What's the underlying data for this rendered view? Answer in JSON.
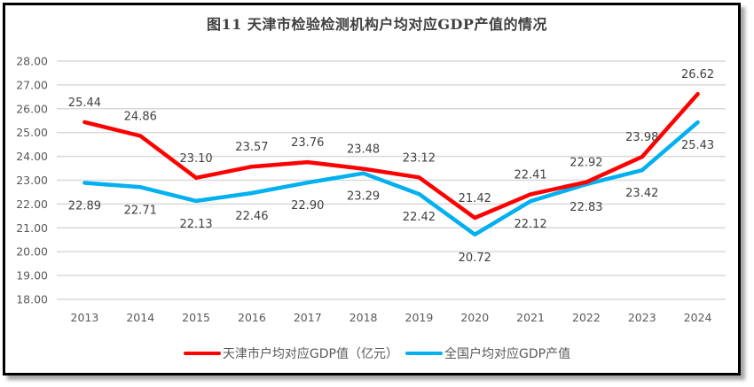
{
  "chart_data": {
    "type": "line",
    "title": "图11   天津市检验检测机构户均对应GDP产值的情况",
    "xlabel": "",
    "ylabel": "",
    "x": [
      "2013",
      "2014",
      "2015",
      "2016",
      "2017",
      "2018",
      "2019",
      "2020",
      "2021",
      "2022",
      "2023",
      "2024"
    ],
    "ylim": [
      18.0,
      28.0
    ],
    "yticks": [
      "18.00",
      "19.00",
      "20.00",
      "21.00",
      "22.00",
      "23.00",
      "24.00",
      "25.00",
      "26.00",
      "27.00",
      "28.00"
    ],
    "grid": true,
    "legend_position": "bottom",
    "series": [
      {
        "name": "天津市户均对应GDP值（亿元）",
        "color": "#FF0000",
        "values": [
          25.44,
          24.86,
          23.1,
          23.57,
          23.76,
          23.48,
          23.12,
          21.42,
          22.41,
          22.92,
          23.98,
          26.62
        ],
        "labels": [
          "25.44",
          "24.86",
          "23.10",
          "23.57",
          "23.76",
          "23.48",
          "23.12",
          "21.42",
          "22.41",
          "22.92",
          "23.98",
          "26.62"
        ],
        "label_position": "above"
      },
      {
        "name": "全国户均对应GDP产值",
        "color": "#00B0F0",
        "values": [
          22.89,
          22.71,
          22.13,
          22.46,
          22.9,
          23.29,
          22.42,
          20.72,
          22.12,
          22.83,
          23.42,
          25.43
        ],
        "labels": [
          "22.89",
          "22.71",
          "22.13",
          "22.46",
          "22.90",
          "23.29",
          "22.42",
          "20.72",
          "22.12",
          "22.83",
          "23.42",
          "25.43"
        ],
        "label_position": "below"
      }
    ]
  },
  "colors": {
    "gridline": "#D9D9D9",
    "text": "#595959",
    "frame": "#000000"
  }
}
